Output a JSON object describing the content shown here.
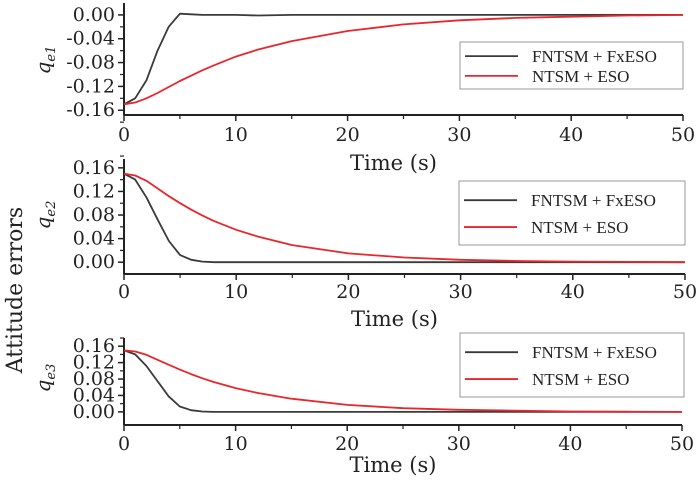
{
  "y_label": "Attitude errors",
  "colors": {
    "fntsm": "#3a3a3a",
    "ntsm": "#e8262b"
  },
  "chart_data": [
    {
      "type": "line",
      "ylabel": "q_e1",
      "ylabel_main": "q",
      "ylabel_sub": "e1",
      "xlabel": "Time (s)",
      "xlim": [
        0,
        50
      ],
      "ylim": [
        -0.168,
        0.02
      ],
      "xticks": [
        "0",
        "10",
        "20",
        "30",
        "40",
        "50"
      ],
      "yticks": [
        "0.00",
        "-0.04",
        "-0.08",
        "-0.12",
        "-0.16"
      ],
      "ytick_values": [
        0,
        -0.04,
        -0.08,
        -0.12,
        -0.16
      ],
      "legend": "right",
      "x": [
        0,
        1,
        2,
        3,
        4,
        5,
        6,
        7,
        8,
        10,
        12,
        15,
        20,
        25,
        30,
        35,
        40,
        45,
        50
      ],
      "series": [
        {
          "name": "FNTSM + FxESO",
          "values": [
            -0.15,
            -0.14,
            -0.11,
            -0.06,
            -0.02,
            0.002,
            0.001,
            0,
            0,
            0,
            -0.001,
            0,
            0,
            0,
            0,
            0,
            0,
            0,
            0
          ]
        },
        {
          "name": "NTSM + ESO",
          "values": [
            -0.15,
            -0.147,
            -0.14,
            -0.131,
            -0.121,
            -0.111,
            -0.102,
            -0.093,
            -0.085,
            -0.07,
            -0.058,
            -0.044,
            -0.027,
            -0.016,
            -0.009,
            -0.005,
            -0.003,
            -0.001,
            0
          ]
        }
      ]
    },
    {
      "type": "line",
      "ylabel": "q_e2",
      "ylabel_main": "q",
      "ylabel_sub": "e2",
      "xlabel": "Time (s)",
      "xlim": [
        0,
        50
      ],
      "ylim": [
        -0.02,
        0.175
      ],
      "xticks": [
        "0",
        "10",
        "20",
        "30",
        "40",
        "50"
      ],
      "yticks": [
        "0.16",
        "0.12",
        "0.08",
        "0.04",
        "0.00"
      ],
      "ytick_values": [
        0.16,
        0.12,
        0.08,
        0.04,
        0
      ],
      "legend": "right",
      "x": [
        0,
        1,
        2,
        3,
        4,
        5,
        6,
        7,
        8,
        10,
        12,
        15,
        20,
        25,
        30,
        35,
        40,
        45,
        50
      ],
      "series": [
        {
          "name": "FNTSM + FxESO",
          "values": [
            0.15,
            0.14,
            0.11,
            0.072,
            0.036,
            0.012,
            0.004,
            0.001,
            0,
            0,
            0,
            0,
            0,
            0,
            0,
            0,
            0,
            0,
            0
          ]
        },
        {
          "name": "NTSM + ESO",
          "values": [
            0.15,
            0.147,
            0.138,
            0.125,
            0.112,
            0.1,
            0.089,
            0.079,
            0.07,
            0.055,
            0.043,
            0.029,
            0.015,
            0.008,
            0.004,
            0.002,
            0.001,
            0.0005,
            0
          ]
        }
      ]
    },
    {
      "type": "line",
      "ylabel": "q_e3",
      "ylabel_main": "q",
      "ylabel_sub": "e3",
      "xlabel": "Time (s)",
      "xlim": [
        0,
        50
      ],
      "ylim": [
        -0.032,
        0.18
      ],
      "xticks": [
        "0",
        "10",
        "20",
        "30",
        "40",
        "50"
      ],
      "yticks": [
        "0.16",
        "0.12",
        "0.08",
        "0.04",
        "0.00"
      ],
      "ytick_values": [
        0.16,
        0.12,
        0.08,
        0.04,
        0
      ],
      "legend": "right",
      "x": [
        0,
        1,
        2,
        3,
        4,
        5,
        6,
        7,
        8,
        10,
        12,
        15,
        20,
        25,
        30,
        35,
        40,
        45,
        50
      ],
      "series": [
        {
          "name": "FNTSM + FxESO",
          "values": [
            0.15,
            0.14,
            0.112,
            0.075,
            0.038,
            0.013,
            0.004,
            0.001,
            0,
            0,
            0,
            0,
            0,
            0,
            0,
            0,
            0,
            0,
            0
          ]
        },
        {
          "name": "NTSM + ESO",
          "values": [
            0.15,
            0.147,
            0.139,
            0.127,
            0.115,
            0.103,
            0.092,
            0.082,
            0.073,
            0.058,
            0.046,
            0.032,
            0.017,
            0.009,
            0.005,
            0.003,
            0.001,
            0.0005,
            0
          ]
        }
      ]
    }
  ]
}
